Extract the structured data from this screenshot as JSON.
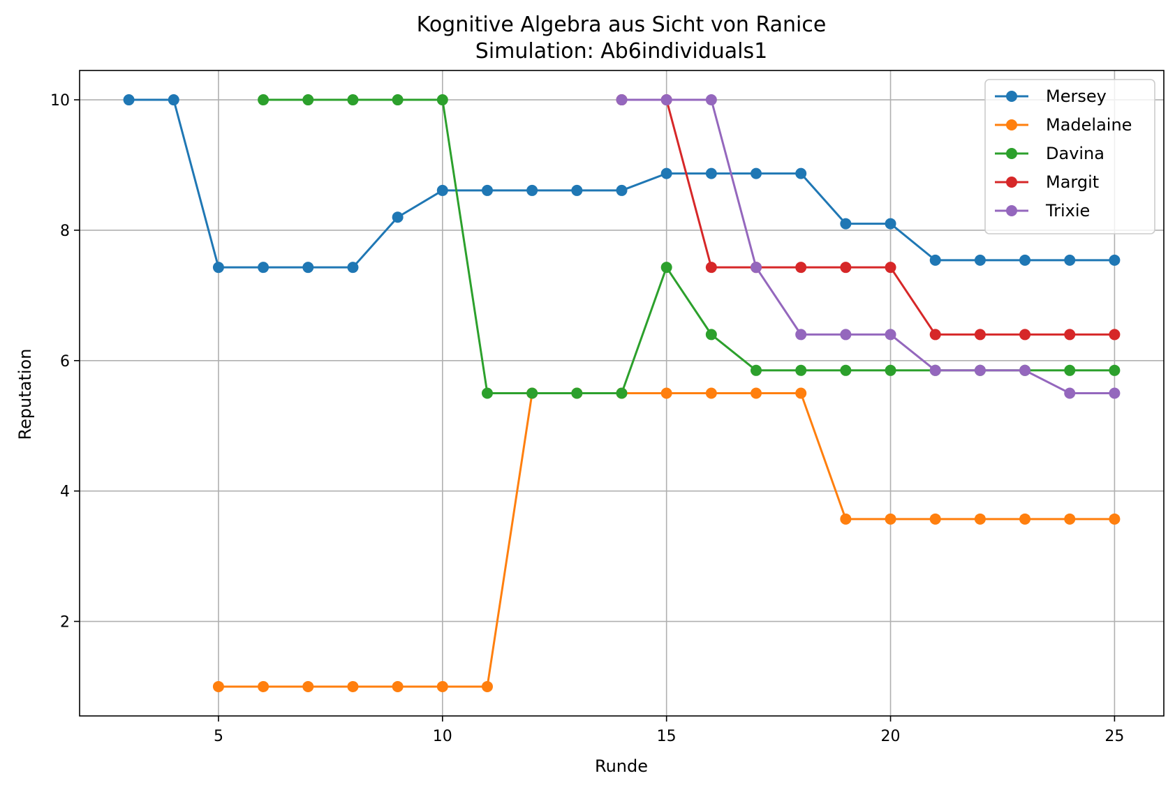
{
  "chart_data": {
    "type": "line",
    "title": "Kognitive Algebra aus Sicht von Ranice",
    "subtitle": "Simulation: Ab6individuals1",
    "xlabel": "Runde",
    "ylabel": "Reputation",
    "xlim": [
      1.9,
      26.1
    ],
    "ylim": [
      0.55,
      10.45
    ],
    "xticks": [
      5,
      10,
      15,
      20,
      25
    ],
    "yticks": [
      2,
      4,
      6,
      8,
      10
    ],
    "grid": true,
    "legend_position": "top-right",
    "series": [
      {
        "name": "Mersey",
        "color": "#1f77b4",
        "x": [
          3,
          4,
          5,
          6,
          7,
          8,
          9,
          10,
          11,
          12,
          13,
          14,
          15,
          16,
          17,
          18,
          19,
          20,
          21,
          22,
          23,
          24,
          25
        ],
        "y": [
          10,
          10,
          7.43,
          7.43,
          7.43,
          7.43,
          8.2,
          8.61,
          8.61,
          8.61,
          8.61,
          8.61,
          8.87,
          8.87,
          8.87,
          8.87,
          8.1,
          8.1,
          7.54,
          7.54,
          7.54,
          7.54,
          7.54
        ]
      },
      {
        "name": "Madelaine",
        "color": "#ff7f0e",
        "x": [
          5,
          6,
          7,
          8,
          9,
          10,
          11,
          12,
          13,
          14,
          15,
          16,
          17,
          18,
          19,
          20,
          21,
          22,
          23,
          24,
          25
        ],
        "y": [
          1,
          1,
          1,
          1,
          1,
          1,
          1,
          5.5,
          5.5,
          5.5,
          5.5,
          5.5,
          5.5,
          5.5,
          3.57,
          3.57,
          3.57,
          3.57,
          3.57,
          3.57,
          3.57
        ]
      },
      {
        "name": "Davina",
        "color": "#2ca02c",
        "x": [
          6,
          7,
          8,
          9,
          10,
          11,
          12,
          13,
          14,
          15,
          16,
          17,
          18,
          19,
          20,
          21,
          22,
          23,
          24,
          25
        ],
        "y": [
          10,
          10,
          10,
          10,
          10,
          5.5,
          5.5,
          5.5,
          5.5,
          7.43,
          6.4,
          5.85,
          5.85,
          5.85,
          5.85,
          5.85,
          5.85,
          5.85,
          5.85,
          5.85
        ]
      },
      {
        "name": "Margit",
        "color": "#d62728",
        "x": [
          14,
          15,
          16,
          17,
          18,
          19,
          20,
          21,
          22,
          23,
          24,
          25
        ],
        "y": [
          10,
          10,
          7.43,
          7.43,
          7.43,
          7.43,
          7.43,
          6.4,
          6.4,
          6.4,
          6.4,
          6.4
        ]
      },
      {
        "name": "Trixie",
        "color": "#9467bd",
        "x": [
          14,
          15,
          16,
          17,
          18,
          19,
          20,
          21,
          22,
          23,
          24,
          25
        ],
        "y": [
          10,
          10,
          10,
          7.43,
          6.4,
          6.4,
          6.4,
          5.85,
          5.85,
          5.85,
          5.5,
          5.5
        ]
      }
    ]
  }
}
